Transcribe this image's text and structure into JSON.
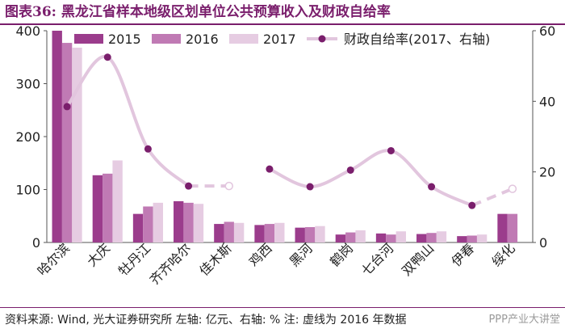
{
  "title": "图表36: 黑龙江省样本地级区划单位公共预算收入及财政自给率",
  "footer": {
    "source": "资料来源: Wind, 光大证券研究所  左轴: 亿元、右轴: %",
    "note": "注: 虚线为 2016 年数据"
  },
  "watermark": "PPP产业大讲堂",
  "chart_data": {
    "type": "bar",
    "categories": [
      "哈尔滨",
      "大庆",
      "牡丹江",
      "齐齐哈尔",
      "佳木斯",
      "鸡西",
      "黑河",
      "鹤岗",
      "七台河",
      "双鸭山",
      "伊春",
      "绥化"
    ],
    "series": [
      {
        "name": "2015",
        "color": "#9b3c8c",
        "values": [
          400,
          127,
          54,
          78,
          35,
          33,
          28,
          15,
          17,
          16,
          12,
          54
        ]
      },
      {
        "name": "2016",
        "color": "#c07ab4",
        "values": [
          377,
          130,
          68,
          75,
          39,
          35,
          29,
          19,
          15,
          18,
          13,
          54
        ]
      },
      {
        "name": "2017",
        "color": "#e6cce2",
        "values": [
          368,
          155,
          75,
          73,
          37,
          37,
          31,
          23,
          21,
          21,
          15,
          null
        ]
      }
    ],
    "line_series": {
      "name": "财政自给率(2017、右轴)",
      "axis": "right",
      "color": "#e2c6de",
      "marker_color": "#7a1e6c",
      "values": [
        38.5,
        52.5,
        26.5,
        16,
        null,
        20.8,
        15.8,
        20.5,
        26,
        15.8,
        10.5,
        null
      ],
      "dashed_2016_values": [
        null,
        null,
        null,
        16,
        16,
        null,
        null,
        null,
        null,
        null,
        10.5,
        15.2
      ]
    },
    "ylim_left": [
      0,
      400
    ],
    "yticks_left": [
      0,
      100,
      200,
      300,
      400
    ],
    "ylim_right": [
      0,
      60
    ],
    "yticks_right": [
      0,
      20,
      40,
      60
    ],
    "ylabel_left": "",
    "ylabel_right": "",
    "legend_position": "top",
    "grid": false
  }
}
